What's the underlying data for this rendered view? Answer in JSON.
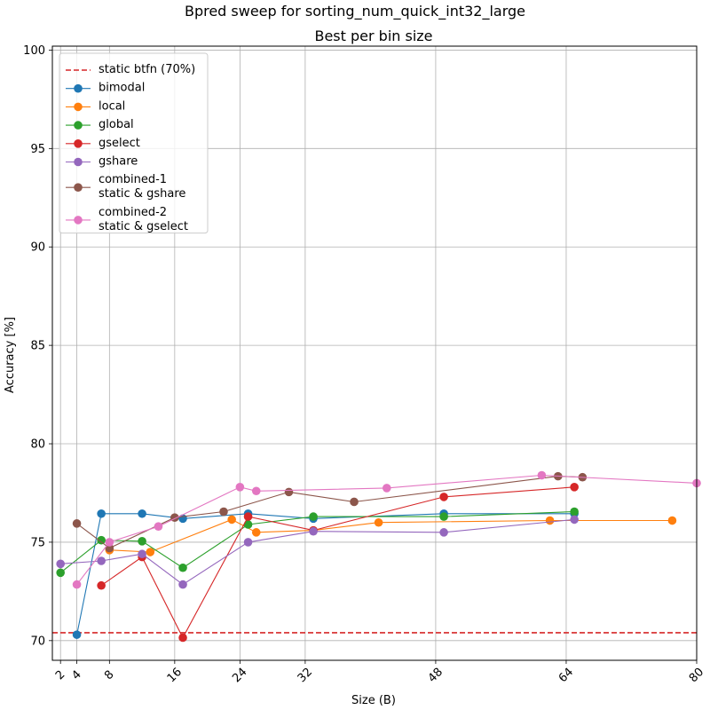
{
  "chart_data": {
    "type": "line",
    "title": "Bpred sweep for sorting_num_quick_int32_large",
    "subtitle": "Best per bin size",
    "xlabel": "Size (B)",
    "ylabel": "Accuracy [%]",
    "xlim": [
      1,
      80
    ],
    "ylim": [
      69,
      100.2
    ],
    "xticks": [
      2,
      4,
      8,
      16,
      24,
      32,
      48,
      64,
      80
    ],
    "yticks": [
      70,
      75,
      80,
      85,
      90,
      95,
      100
    ],
    "grid": true,
    "legend_position": "top-left",
    "reference_line": {
      "name": "static btfn (70%)",
      "y": 70.4,
      "color": "#d62728",
      "style": "dashed"
    },
    "series": [
      {
        "name": "bimodal",
        "color": "#1f77b4",
        "x": [
          4,
          7,
          12,
          17,
          25,
          33,
          49,
          65
        ],
        "y": [
          70.3,
          76.45,
          76.45,
          76.2,
          76.45,
          76.2,
          76.45,
          76.45
        ]
      },
      {
        "name": "local",
        "color": "#ff7f0e",
        "x": [
          8,
          13,
          23,
          26,
          33,
          41,
          62,
          77
        ],
        "y": [
          74.6,
          74.5,
          76.15,
          75.5,
          75.6,
          76.0,
          76.1,
          76.1
        ]
      },
      {
        "name": "global",
        "color": "#2ca02c",
        "x": [
          2,
          7,
          12,
          17,
          25,
          33,
          49,
          65
        ],
        "y": [
          73.45,
          75.1,
          75.05,
          73.7,
          75.9,
          76.3,
          76.3,
          76.55
        ]
      },
      {
        "name": "gselect",
        "color": "#d62728",
        "x": [
          7,
          12,
          17,
          25,
          33,
          49,
          65
        ],
        "y": [
          72.8,
          74.25,
          70.15,
          76.3,
          75.6,
          77.3,
          77.8
        ]
      },
      {
        "name": "gshare",
        "color": "#9467bd",
        "x": [
          2,
          7,
          12,
          17,
          25,
          33,
          49,
          65
        ],
        "y": [
          73.9,
          74.05,
          74.4,
          72.85,
          75.0,
          75.55,
          75.5,
          76.15
        ]
      },
      {
        "name": "combined-1\nstatic & gshare",
        "color": "#8c564b",
        "x": [
          4,
          8,
          16,
          22,
          30,
          38,
          63,
          66
        ],
        "y": [
          75.95,
          74.7,
          76.25,
          76.55,
          77.55,
          77.05,
          78.35,
          78.3
        ]
      },
      {
        "name": "combined-2\nstatic & gselect",
        "color": "#e377c2",
        "x": [
          4,
          8,
          14,
          24,
          26,
          42,
          61,
          80
        ],
        "y": [
          72.85,
          75.0,
          75.8,
          77.8,
          77.6,
          77.75,
          78.4,
          78.0
        ]
      }
    ]
  }
}
